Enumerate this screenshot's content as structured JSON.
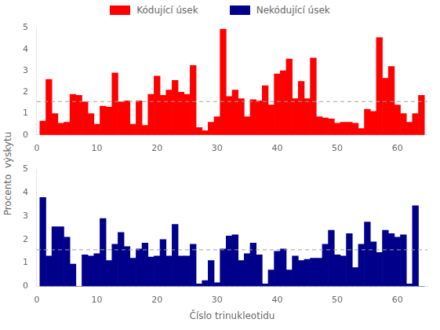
{
  "chart_data": [
    {
      "type": "bar",
      "legend": "top",
      "ylabel": "Procento  výskytu",
      "x": [
        1,
        2,
        3,
        4,
        5,
        6,
        7,
        8,
        9,
        10,
        11,
        12,
        13,
        14,
        15,
        16,
        17,
        18,
        19,
        20,
        21,
        22,
        23,
        24,
        25,
        26,
        27,
        28,
        29,
        30,
        31,
        32,
        33,
        34,
        35,
        36,
        37,
        38,
        39,
        40,
        41,
        42,
        43,
        44,
        45,
        46,
        47,
        48,
        49,
        50,
        51,
        52,
        53,
        54,
        55,
        56,
        57,
        58,
        59,
        60,
        61,
        62,
        63,
        64
      ],
      "series": [
        {
          "name": "Kódující úsek",
          "color": "#FF0000",
          "values": [
            0.65,
            2.6,
            1.0,
            0.55,
            0.6,
            1.9,
            1.85,
            1.55,
            1.0,
            0.5,
            1.35,
            1.3,
            2.9,
            1.55,
            1.6,
            0.5,
            1.6,
            0.45,
            1.9,
            2.75,
            1.85,
            2.1,
            2.55,
            2.0,
            1.9,
            3.25,
            0.35,
            0.2,
            0.6,
            0.85,
            4.95,
            1.8,
            2.1,
            1.7,
            0.85,
            1.65,
            1.6,
            2.3,
            1.4,
            2.85,
            3.0,
            3.55,
            1.7,
            2.5,
            1.7,
            3.6,
            0.85,
            0.8,
            0.75,
            0.55,
            0.6,
            0.6,
            0.55,
            0.3,
            1.2,
            1.1,
            4.55,
            2.65,
            3.2,
            1.4,
            1.0,
            0.6,
            1.0,
            1.85
          ]
        }
      ],
      "hline": {
        "value": 1.5625,
        "color": "#A0A0A0",
        "line_style": "dashed"
      },
      "xlim": [
        0,
        65
      ],
      "xticks": [
        0,
        10,
        20,
        30,
        40,
        50,
        60
      ],
      "ylim": [
        0,
        5
      ],
      "yticks": [
        0,
        1,
        2,
        3,
        4,
        5
      ],
      "grid": false
    },
    {
      "type": "bar",
      "xlabel": "Číslo trinukleotidu",
      "x": [
        1,
        2,
        3,
        4,
        5,
        6,
        7,
        8,
        9,
        10,
        11,
        12,
        13,
        14,
        15,
        16,
        17,
        18,
        19,
        20,
        21,
        22,
        23,
        24,
        25,
        26,
        27,
        28,
        29,
        30,
        31,
        32,
        33,
        34,
        35,
        36,
        37,
        38,
        39,
        40,
        41,
        42,
        43,
        44,
        45,
        46,
        47,
        48,
        49,
        50,
        51,
        52,
        53,
        54,
        55,
        56,
        57,
        58,
        59,
        60,
        61,
        62,
        63,
        64
      ],
      "series": [
        {
          "name": "Nekódující úsek",
          "color": "#00008B",
          "values": [
            3.8,
            1.3,
            2.55,
            2.55,
            2.1,
            0.95,
            0.0,
            1.35,
            1.3,
            1.4,
            2.9,
            1.1,
            1.8,
            2.3,
            1.7,
            1.2,
            1.6,
            1.85,
            1.25,
            1.3,
            2.0,
            1.3,
            2.65,
            1.3,
            1.3,
            1.8,
            0.1,
            0.25,
            1.1,
            0.15,
            1.6,
            2.15,
            2.2,
            1.1,
            1.4,
            1.85,
            1.35,
            0.1,
            0.7,
            1.5,
            1.6,
            0.7,
            1.3,
            1.1,
            1.15,
            1.2,
            1.2,
            1.8,
            2.4,
            1.35,
            1.3,
            2.25,
            0.8,
            1.8,
            2.75,
            1.9,
            1.45,
            2.4,
            2.25,
            2.1,
            2.2,
            0.1,
            3.45,
            0.0
          ]
        }
      ],
      "hline": {
        "value": 1.5625,
        "color": "#A0A0A0",
        "line_style": "dashed"
      },
      "xlim": [
        0,
        65
      ],
      "xticks": [
        0,
        10,
        20,
        30,
        40,
        50,
        60
      ],
      "ylim": [
        0,
        5
      ],
      "yticks": [
        0,
        1,
        2,
        3,
        4,
        5
      ],
      "grid": false
    }
  ]
}
